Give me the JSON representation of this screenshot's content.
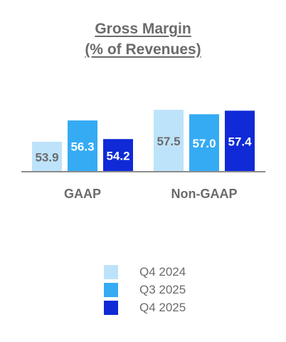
{
  "chart_data": {
    "type": "bar",
    "title_lines": [
      "Gross Margin",
      "(% of Revenues)"
    ],
    "categories": [
      "GAAP",
      "Non-GAAP"
    ],
    "series": [
      {
        "name": "Q4 2024",
        "values": [
          53.9,
          57.5
        ],
        "color": "#bde3fb",
        "label_color": "#6b6b6b"
      },
      {
        "name": "Q3 2025",
        "values": [
          56.3,
          57.0
        ],
        "color": "#35abf4",
        "label_color": "#ffffff"
      },
      {
        "name": "Q4 2025",
        "values": [
          54.2,
          57.4
        ],
        "color": "#0f2ad6",
        "label_color": "#ffffff"
      }
    ],
    "data_labels": [
      [
        "53.9",
        "57.5"
      ],
      [
        "56.3",
        "57.0"
      ],
      [
        "54.2",
        "57.4"
      ]
    ],
    "axis_color": "#8c8c8c",
    "text_color": "#6b6b6b"
  }
}
